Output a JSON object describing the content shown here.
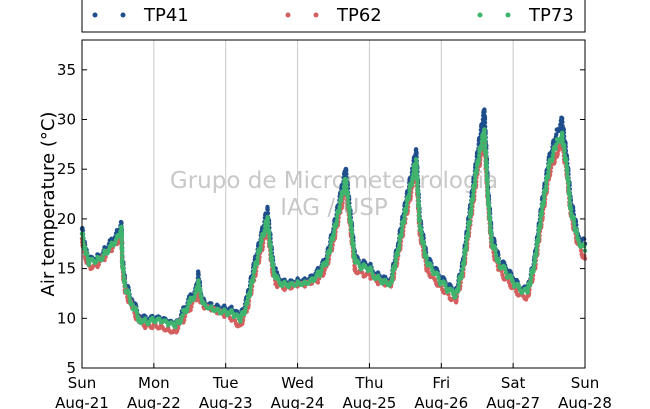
{
  "watermark": {
    "line1": "Grupo de Micrometeorologia",
    "line2": "IAG / USP"
  },
  "chart_data": {
    "type": "scatter",
    "ylabel": "Air temperature (°C)",
    "xlabel": "",
    "ylim": [
      5,
      38
    ],
    "xlim": [
      0,
      7
    ],
    "y_ticks": [
      5,
      10,
      15,
      20,
      25,
      30,
      35
    ],
    "x_ticks": [
      {
        "x": 0,
        "day": "Sun",
        "date": "Aug-21"
      },
      {
        "x": 1,
        "day": "Mon",
        "date": "Aug-22"
      },
      {
        "x": 2,
        "day": "Tue",
        "date": "Aug-23"
      },
      {
        "x": 3,
        "day": "Wed",
        "date": "Aug-24"
      },
      {
        "x": 4,
        "day": "Thu",
        "date": "Aug-25"
      },
      {
        "x": 5,
        "day": "Fri",
        "date": "Aug-26"
      },
      {
        "x": 6,
        "day": "Sat",
        "date": "Aug-27"
      },
      {
        "x": 7,
        "day": "Sun",
        "date": "Aug-28"
      }
    ],
    "grid": "vertical",
    "legend_position": "top",
    "series": [
      {
        "name": "TP41",
        "color": "#1f4e8c",
        "points": [
          [
            0.0,
            19.0
          ],
          [
            0.05,
            16.8
          ],
          [
            0.1,
            15.8
          ],
          [
            0.2,
            16.0
          ],
          [
            0.3,
            16.8
          ],
          [
            0.4,
            17.8
          ],
          [
            0.5,
            18.7
          ],
          [
            0.55,
            19.6
          ],
          [
            0.56,
            16.2
          ],
          [
            0.6,
            13.6
          ],
          [
            0.7,
            11.8
          ],
          [
            0.8,
            10.2
          ],
          [
            0.9,
            9.8
          ],
          [
            1.0,
            9.9
          ],
          [
            1.1,
            9.8
          ],
          [
            1.2,
            9.5
          ],
          [
            1.3,
            9.2
          ],
          [
            1.4,
            10.6
          ],
          [
            1.5,
            12.0
          ],
          [
            1.6,
            13.2
          ],
          [
            1.62,
            14.5
          ],
          [
            1.65,
            12.6
          ],
          [
            1.7,
            11.8
          ],
          [
            1.8,
            11.5
          ],
          [
            1.9,
            11.2
          ],
          [
            2.0,
            11.0
          ],
          [
            2.1,
            10.8
          ],
          [
            2.2,
            10.0
          ],
          [
            2.3,
            12.0
          ],
          [
            2.4,
            15.5
          ],
          [
            2.5,
            18.5
          ],
          [
            2.58,
            21.0
          ],
          [
            2.65,
            16.0
          ],
          [
            2.7,
            14.5
          ],
          [
            2.8,
            13.8
          ],
          [
            2.9,
            13.8
          ],
          [
            3.0,
            14.0
          ],
          [
            3.1,
            14.0
          ],
          [
            3.2,
            14.3
          ],
          [
            3.3,
            14.8
          ],
          [
            3.4,
            16.0
          ],
          [
            3.5,
            19.0
          ],
          [
            3.6,
            22.5
          ],
          [
            3.67,
            25.0
          ],
          [
            3.75,
            19.5
          ],
          [
            3.8,
            16.0
          ],
          [
            3.9,
            15.5
          ],
          [
            4.0,
            15.3
          ],
          [
            4.1,
            14.5
          ],
          [
            4.2,
            14.2
          ],
          [
            4.3,
            14.0
          ],
          [
            4.4,
            17.5
          ],
          [
            4.5,
            21.5
          ],
          [
            4.6,
            25.0
          ],
          [
            4.65,
            27.0
          ],
          [
            4.7,
            20.0
          ],
          [
            4.8,
            16.0
          ],
          [
            4.9,
            15.0
          ],
          [
            5.0,
            14.0
          ],
          [
            5.1,
            13.2
          ],
          [
            5.2,
            12.5
          ],
          [
            5.3,
            15.5
          ],
          [
            5.4,
            21.0
          ],
          [
            5.5,
            26.5
          ],
          [
            5.6,
            31.0
          ],
          [
            5.65,
            23.0
          ],
          [
            5.7,
            18.5
          ],
          [
            5.8,
            16.0
          ],
          [
            5.9,
            15.0
          ],
          [
            6.0,
            14.0
          ],
          [
            6.1,
            13.0
          ],
          [
            6.2,
            12.8
          ],
          [
            6.3,
            16.0
          ],
          [
            6.4,
            21.5
          ],
          [
            6.5,
            26.0
          ],
          [
            6.6,
            28.5
          ],
          [
            6.68,
            30.0
          ],
          [
            6.75,
            26.0
          ],
          [
            6.8,
            22.0
          ],
          [
            6.9,
            18.5
          ],
          [
            7.0,
            17.5
          ]
        ]
      },
      {
        "name": "TP62",
        "color": "#d45f5f",
        "points": [
          [
            0.0,
            18.0
          ],
          [
            0.05,
            16.2
          ],
          [
            0.1,
            15.3
          ],
          [
            0.2,
            15.4
          ],
          [
            0.3,
            16.0
          ],
          [
            0.4,
            16.8
          ],
          [
            0.5,
            17.6
          ],
          [
            0.55,
            18.5
          ],
          [
            0.56,
            15.2
          ],
          [
            0.6,
            12.8
          ],
          [
            0.7,
            11.0
          ],
          [
            0.8,
            9.6
          ],
          [
            0.9,
            9.3
          ],
          [
            1.0,
            9.4
          ],
          [
            1.1,
            9.3
          ],
          [
            1.2,
            9.0
          ],
          [
            1.3,
            8.8
          ],
          [
            1.4,
            9.8
          ],
          [
            1.5,
            11.0
          ],
          [
            1.6,
            12.2
          ],
          [
            1.62,
            13.2
          ],
          [
            1.65,
            11.8
          ],
          [
            1.7,
            11.0
          ],
          [
            1.8,
            10.8
          ],
          [
            1.9,
            10.5
          ],
          [
            2.0,
            10.3
          ],
          [
            2.1,
            10.0
          ],
          [
            2.2,
            9.3
          ],
          [
            2.3,
            11.0
          ],
          [
            2.4,
            14.3
          ],
          [
            2.5,
            17.0
          ],
          [
            2.58,
            19.2
          ],
          [
            2.65,
            14.8
          ],
          [
            2.7,
            13.5
          ],
          [
            2.8,
            13.0
          ],
          [
            2.9,
            13.0
          ],
          [
            3.0,
            13.2
          ],
          [
            3.1,
            13.2
          ],
          [
            3.2,
            13.5
          ],
          [
            3.3,
            14.0
          ],
          [
            3.4,
            15.2
          ],
          [
            3.5,
            17.8
          ],
          [
            3.6,
            21.0
          ],
          [
            3.67,
            23.2
          ],
          [
            3.75,
            18.2
          ],
          [
            3.8,
            15.0
          ],
          [
            3.9,
            14.6
          ],
          [
            4.0,
            14.4
          ],
          [
            4.1,
            13.7
          ],
          [
            4.2,
            13.4
          ],
          [
            4.3,
            13.2
          ],
          [
            4.4,
            16.3
          ],
          [
            4.5,
            20.0
          ],
          [
            4.6,
            23.3
          ],
          [
            4.65,
            25.0
          ],
          [
            4.7,
            18.6
          ],
          [
            4.8,
            15.0
          ],
          [
            4.9,
            14.0
          ],
          [
            5.0,
            13.2
          ],
          [
            5.1,
            12.4
          ],
          [
            5.2,
            11.8
          ],
          [
            5.3,
            14.4
          ],
          [
            5.4,
            19.5
          ],
          [
            5.5,
            24.5
          ],
          [
            5.6,
            28.0
          ],
          [
            5.65,
            21.5
          ],
          [
            5.7,
            17.2
          ],
          [
            5.8,
            15.0
          ],
          [
            5.9,
            14.0
          ],
          [
            6.0,
            13.2
          ],
          [
            6.1,
            12.4
          ],
          [
            6.2,
            12.2
          ],
          [
            6.3,
            15.0
          ],
          [
            6.4,
            20.0
          ],
          [
            6.5,
            24.5
          ],
          [
            6.6,
            26.5
          ],
          [
            6.68,
            27.5
          ],
          [
            6.75,
            24.5
          ],
          [
            6.8,
            20.5
          ],
          [
            6.9,
            17.5
          ],
          [
            7.0,
            16.0
          ]
        ]
      },
      {
        "name": "TP73",
        "color": "#3fb46e",
        "points": [
          [
            0.0,
            18.5
          ],
          [
            0.05,
            16.5
          ],
          [
            0.1,
            15.6
          ],
          [
            0.2,
            15.7
          ],
          [
            0.3,
            16.4
          ],
          [
            0.4,
            17.3
          ],
          [
            0.5,
            18.2
          ],
          [
            0.55,
            19.2
          ],
          [
            0.56,
            15.7
          ],
          [
            0.6,
            13.2
          ],
          [
            0.7,
            11.4
          ],
          [
            0.8,
            9.9
          ],
          [
            0.9,
            9.6
          ],
          [
            1.0,
            9.7
          ],
          [
            1.1,
            9.6
          ],
          [
            1.2,
            9.3
          ],
          [
            1.3,
            9.1
          ],
          [
            1.4,
            10.3
          ],
          [
            1.5,
            11.6
          ],
          [
            1.6,
            12.8
          ],
          [
            1.62,
            13.8
          ],
          [
            1.65,
            12.3
          ],
          [
            1.7,
            11.5
          ],
          [
            1.8,
            11.2
          ],
          [
            1.9,
            10.9
          ],
          [
            2.0,
            10.7
          ],
          [
            2.1,
            10.5
          ],
          [
            2.2,
            9.7
          ],
          [
            2.3,
            11.5
          ],
          [
            2.4,
            14.8
          ],
          [
            2.5,
            17.8
          ],
          [
            2.58,
            20.0
          ],
          [
            2.65,
            15.3
          ],
          [
            2.7,
            14.0
          ],
          [
            2.8,
            13.5
          ],
          [
            2.9,
            13.5
          ],
          [
            3.0,
            13.7
          ],
          [
            3.1,
            13.7
          ],
          [
            3.2,
            14.0
          ],
          [
            3.3,
            14.5
          ],
          [
            3.4,
            15.6
          ],
          [
            3.5,
            18.4
          ],
          [
            3.6,
            21.8
          ],
          [
            3.67,
            24.0
          ],
          [
            3.75,
            18.8
          ],
          [
            3.8,
            15.6
          ],
          [
            3.9,
            15.1
          ],
          [
            4.0,
            14.9
          ],
          [
            4.1,
            14.1
          ],
          [
            4.2,
            13.8
          ],
          [
            4.3,
            13.6
          ],
          [
            4.4,
            16.9
          ],
          [
            4.5,
            20.8
          ],
          [
            4.6,
            24.2
          ],
          [
            4.65,
            26.0
          ],
          [
            4.7,
            19.3
          ],
          [
            4.8,
            15.6
          ],
          [
            4.9,
            14.6
          ],
          [
            5.0,
            13.6
          ],
          [
            5.1,
            12.8
          ],
          [
            5.2,
            12.2
          ],
          [
            5.3,
            15.0
          ],
          [
            5.4,
            20.2
          ],
          [
            5.5,
            25.5
          ],
          [
            5.6,
            29.0
          ],
          [
            5.65,
            22.2
          ],
          [
            5.7,
            17.8
          ],
          [
            5.8,
            15.6
          ],
          [
            5.9,
            14.6
          ],
          [
            6.0,
            13.6
          ],
          [
            6.1,
            12.8
          ],
          [
            6.2,
            12.6
          ],
          [
            6.3,
            15.6
          ],
          [
            6.4,
            20.8
          ],
          [
            6.5,
            25.3
          ],
          [
            6.6,
            27.5
          ],
          [
            6.68,
            28.5
          ],
          [
            6.75,
            25.0
          ],
          [
            6.8,
            21.0
          ],
          [
            6.9,
            18.0
          ],
          [
            7.0,
            16.8
          ]
        ]
      }
    ]
  }
}
